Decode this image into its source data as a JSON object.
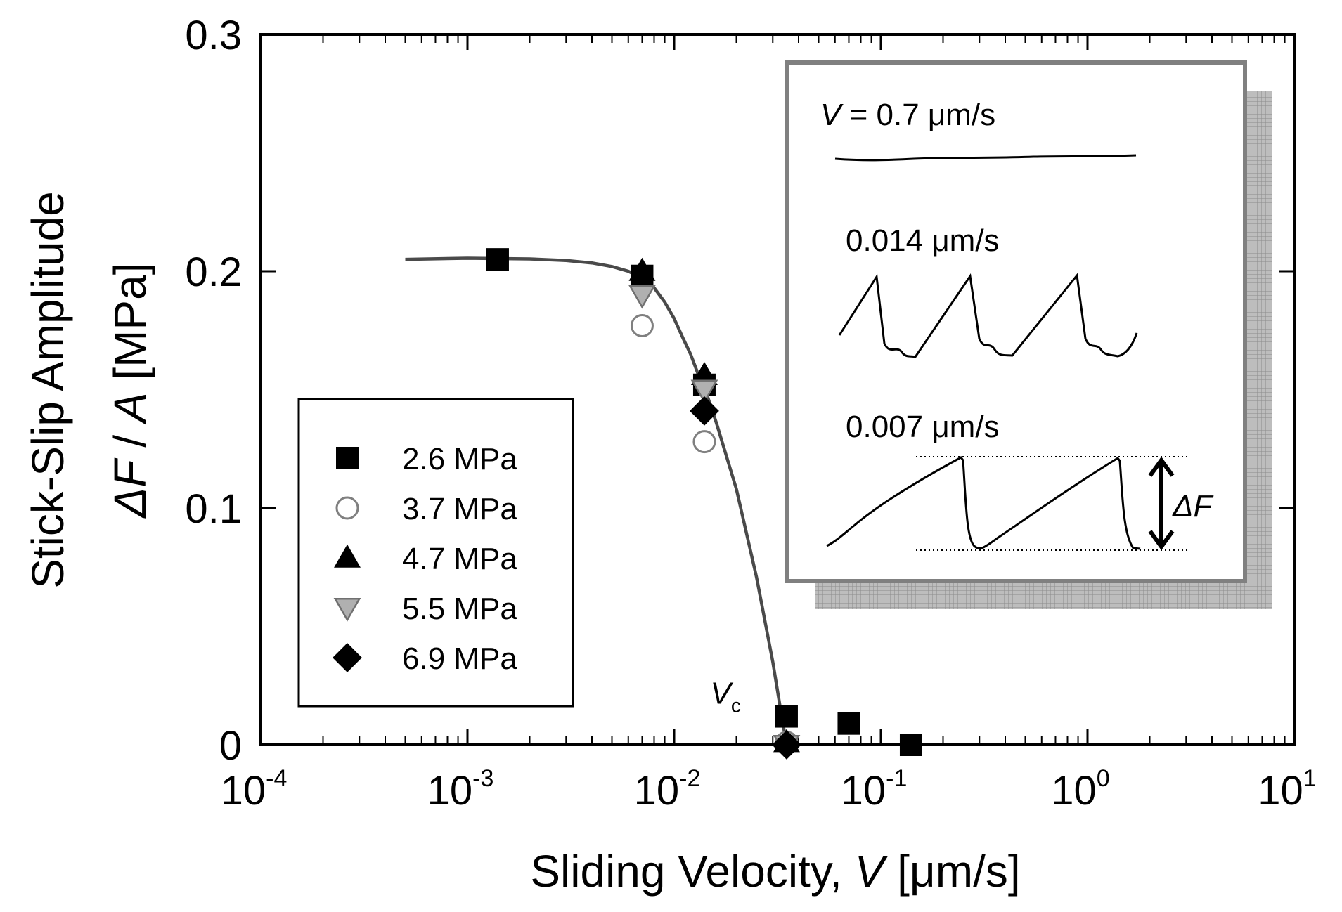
{
  "chart_data": {
    "type": "scatter",
    "x_scale": "log",
    "xlim": [
      0.0001,
      10
    ],
    "ylim": [
      0,
      0.3
    ],
    "x_ticks": [
      {
        "value": 0.0001,
        "base": "10",
        "exp": "-4"
      },
      {
        "value": 0.001,
        "base": "10",
        "exp": "-3"
      },
      {
        "value": 0.01,
        "base": "10",
        "exp": "-2"
      },
      {
        "value": 0.1,
        "base": "10",
        "exp": "-1"
      },
      {
        "value": 1,
        "base": "10",
        "exp": "0"
      },
      {
        "value": 10,
        "base": "10",
        "exp": "1"
      }
    ],
    "y_ticks": [
      {
        "value": 0,
        "label": "0"
      },
      {
        "value": 0.1,
        "label": "0.1"
      },
      {
        "value": 0.2,
        "label": "0.2"
      },
      {
        "value": 0.3,
        "label": "0.3"
      }
    ],
    "xlabel": {
      "prefix": "Sliding Velocity, ",
      "var": "V",
      "suffix": " [μm/s]"
    },
    "ylabel": {
      "line1": "Stick-Slip Amplitude",
      "delta": "Δ",
      "var1": "F",
      "sep": " / ",
      "var2": "A",
      "suffix": " [MPa]"
    },
    "series": [
      {
        "name": "2.6 MPa",
        "marker": "square",
        "fill": "#000000",
        "stroke": "#000000",
        "points": [
          [
            0.0014,
            0.205
          ],
          [
            0.007,
            0.198
          ],
          [
            0.014,
            0.152
          ],
          [
            0.035,
            0.012
          ],
          [
            0.07,
            0.009
          ],
          [
            0.14,
            0.0
          ]
        ]
      },
      {
        "name": "3.7 MPa",
        "marker": "circle",
        "fill": "#ffffff",
        "stroke": "#808080",
        "points": [
          [
            0.007,
            0.177
          ],
          [
            0.014,
            0.128
          ],
          [
            0.035,
            0.001
          ]
        ]
      },
      {
        "name": "4.7 MPa",
        "marker": "triangle-up",
        "fill": "#000000",
        "stroke": "#000000",
        "points": [
          [
            0.007,
            0.2
          ],
          [
            0.014,
            0.156
          ],
          [
            0.035,
            0.001
          ]
        ]
      },
      {
        "name": "5.5 MPa",
        "marker": "triangle-down",
        "fill": "#b0b0b0",
        "stroke": "#707070",
        "points": [
          [
            0.007,
            0.19
          ],
          [
            0.014,
            0.15
          ],
          [
            0.035,
            0.0
          ]
        ]
      },
      {
        "name": "6.9 MPa",
        "marker": "diamond",
        "fill": "#000000",
        "stroke": "#000000",
        "points": [
          [
            0.014,
            0.141
          ],
          [
            0.035,
            0.0
          ]
        ]
      }
    ],
    "fit_curve": {
      "color": "#4a4a4a",
      "points": [
        [
          0.0005,
          0.205
        ],
        [
          0.001,
          0.2055
        ],
        [
          0.002,
          0.2052
        ],
        [
          0.003,
          0.2045
        ],
        [
          0.004,
          0.2035
        ],
        [
          0.005,
          0.202
        ],
        [
          0.006,
          0.2
        ],
        [
          0.007,
          0.197
        ],
        [
          0.008,
          0.193
        ],
        [
          0.009,
          0.187
        ],
        [
          0.01,
          0.18
        ],
        [
          0.011,
          0.172
        ],
        [
          0.012,
          0.165
        ],
        [
          0.013,
          0.157
        ],
        [
          0.014,
          0.151
        ],
        [
          0.016,
          0.136
        ],
        [
          0.02,
          0.108
        ],
        [
          0.025,
          0.071
        ],
        [
          0.03,
          0.035
        ],
        [
          0.033,
          0.013
        ],
        [
          0.035,
          0.0
        ]
      ]
    },
    "annotation": {
      "var": "V",
      "sub": "c",
      "x": 0.028,
      "y": 0.01
    },
    "legend": {
      "position": "lower-left"
    },
    "inset": {
      "position": "upper-right",
      "traces": [
        {
          "var": "V",
          "label": " = 0.7 μm/s"
        },
        {
          "var": "",
          "label": "0.014 μm/s"
        },
        {
          "var": "",
          "label": "0.007 μm/s"
        }
      ],
      "amplitude_label": {
        "delta": "Δ",
        "var": "F"
      }
    }
  }
}
